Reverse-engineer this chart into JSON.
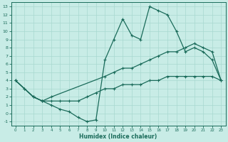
{
  "xlabel": "Humidex (Indice chaleur)",
  "bg_color": "#c8ece6",
  "line_color": "#1a6b5a",
  "grid_color": "#a8d8d0",
  "xlim": [
    -0.5,
    23.5
  ],
  "ylim": [
    -1.5,
    13.5
  ],
  "xticks": [
    0,
    1,
    2,
    3,
    4,
    5,
    6,
    7,
    8,
    9,
    10,
    11,
    12,
    13,
    14,
    15,
    16,
    17,
    18,
    19,
    20,
    21,
    22,
    23
  ],
  "yticks": [
    -1,
    0,
    1,
    2,
    3,
    4,
    5,
    6,
    7,
    8,
    9,
    10,
    11,
    12,
    13
  ],
  "line1_x": [
    0,
    1,
    2,
    3,
    4,
    5,
    6,
    7,
    8,
    9,
    10,
    11,
    12,
    13,
    14,
    15,
    16,
    17,
    18,
    19,
    20,
    21,
    22,
    23
  ],
  "line1_y": [
    4.0,
    3.0,
    2.0,
    1.5,
    1.0,
    0.5,
    0.2,
    -0.5,
    -1.0,
    -0.8,
    6.5,
    9.0,
    11.5,
    9.5,
    9.0,
    13.0,
    12.5,
    12.0,
    10.0,
    7.5,
    8.0,
    7.5,
    6.5,
    4.0
  ],
  "line2_x": [
    0,
    2,
    3,
    4,
    10,
    11,
    12,
    13,
    14,
    15,
    16,
    17,
    18,
    19,
    20,
    21,
    22,
    23
  ],
  "line2_y": [
    4.0,
    2.0,
    1.5,
    2.0,
    4.5,
    5.0,
    5.5,
    5.5,
    6.0,
    6.5,
    7.0,
    7.5,
    7.5,
    8.0,
    8.5,
    8.0,
    7.5,
    4.0
  ],
  "line3_x": [
    0,
    1,
    2,
    3,
    4,
    5,
    6,
    7,
    8,
    9,
    10,
    11,
    12,
    13,
    14,
    15,
    16,
    17,
    18,
    19,
    20,
    21,
    22,
    23
  ],
  "line3_y": [
    4.0,
    3.0,
    2.0,
    1.5,
    1.5,
    1.5,
    1.5,
    1.5,
    2.0,
    2.5,
    3.0,
    3.0,
    3.5,
    3.5,
    3.5,
    4.0,
    4.0,
    4.5,
    4.5,
    4.5,
    4.5,
    4.5,
    4.5,
    4.0
  ]
}
